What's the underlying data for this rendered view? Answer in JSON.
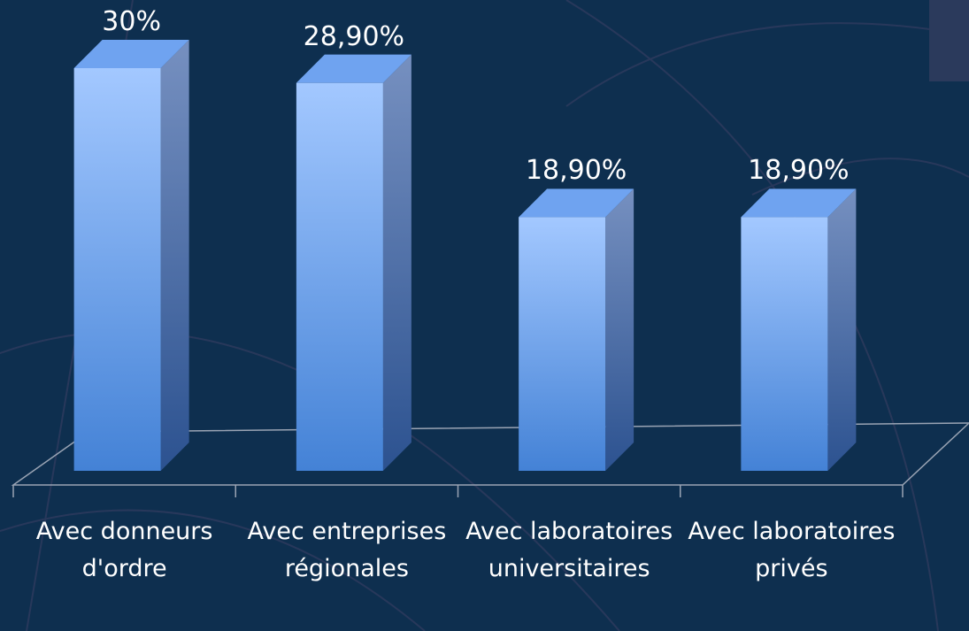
{
  "chart_data": {
    "type": "bar3d",
    "categories": [
      "Avec donneurs d'ordre",
      "Avec entreprises régionales",
      "Avec laboratoires universitaires",
      "Avec laboratoires privés"
    ],
    "values": [
      30,
      28.9,
      18.9,
      18.9
    ],
    "value_labels": [
      "30%",
      "28,90%",
      "18,90%",
      "18,90%"
    ],
    "color": "#6fa3f0"
  }
}
